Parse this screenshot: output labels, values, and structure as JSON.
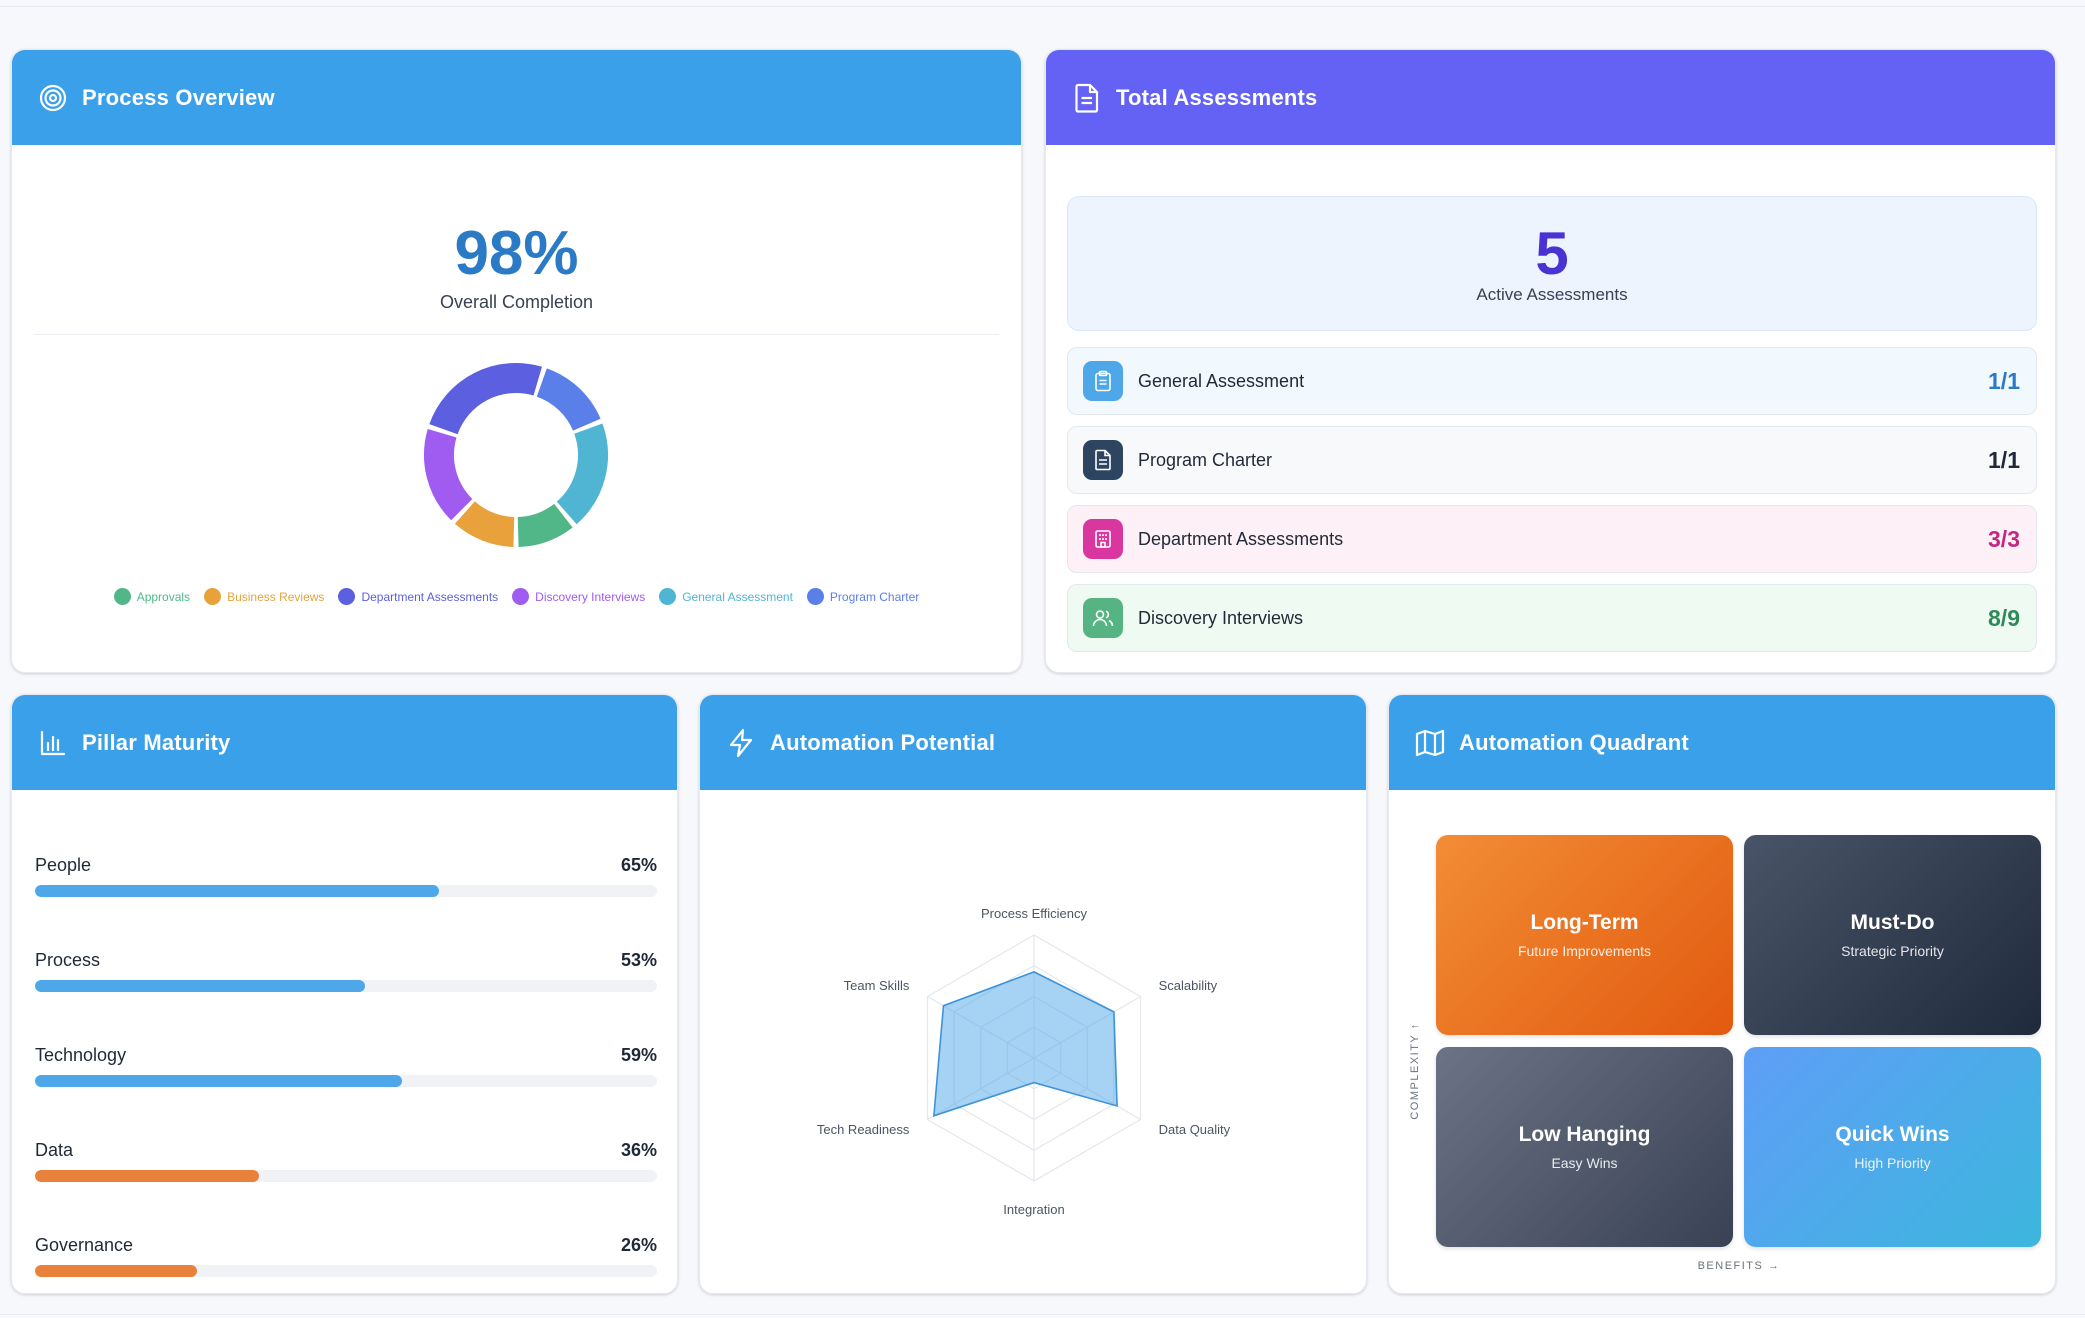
{
  "process_overview": {
    "title": "Process Overview",
    "icon": "target-icon",
    "completion": "98%",
    "completion_label": "Overall Completion",
    "legend": [
      {
        "label": "Approvals",
        "color": "#52b788"
      },
      {
        "label": "Business Reviews",
        "color": "#e9a23b"
      },
      {
        "label": "Department Assessments",
        "color": "#5b5fe0"
      },
      {
        "label": "Discovery Interviews",
        "color": "#a05cf0"
      },
      {
        "label": "General Assessment",
        "color": "#4fb5d3"
      },
      {
        "label": "Program Charter",
        "color": "#5b7fe8"
      }
    ]
  },
  "total_assessments": {
    "title": "Total Assessments",
    "icon": "document-icon",
    "active_count": "5",
    "active_label": "Active Assessments",
    "items": [
      {
        "label": "General Assessment",
        "count": "1/1",
        "icon": "clipboard-icon",
        "icon_bg": "#4ea7e8",
        "row_bg": "#f1f8fe",
        "count_color": "#2a7ac6"
      },
      {
        "label": "Program Charter",
        "count": "1/1",
        "icon": "document-icon",
        "icon_bg": "#2d4560",
        "row_bg": "#f8f9fb",
        "count_color": "#1f2937"
      },
      {
        "label": "Department Assessments",
        "count": "3/3",
        "icon": "building-icon",
        "icon_bg": "#d936a0",
        "row_bg": "#fdf0f6",
        "count_color": "#c2287f"
      },
      {
        "label": "Discovery Interviews",
        "count": "8/9",
        "icon": "users-icon",
        "icon_bg": "#55b482",
        "row_bg": "#effaf3",
        "count_color": "#2f8a5a"
      }
    ]
  },
  "pillar_maturity": {
    "title": "Pillar Maturity",
    "icon": "bar-chart-icon",
    "pillars": [
      {
        "name": "People",
        "value": "65%",
        "fraction": 0.65,
        "color": "#4ea7e8"
      },
      {
        "name": "Process",
        "value": "53%",
        "fraction": 0.53,
        "color": "#4ea7e8"
      },
      {
        "name": "Technology",
        "value": "59%",
        "fraction": 0.59,
        "color": "#4ea7e8"
      },
      {
        "name": "Data",
        "value": "36%",
        "fraction": 0.36,
        "color": "#e8823b"
      },
      {
        "name": "Governance",
        "value": "26%",
        "fraction": 0.26,
        "color": "#e8823b"
      }
    ]
  },
  "automation_potential": {
    "title": "Automation Potential",
    "icon": "lightning-icon"
  },
  "automation_quadrant": {
    "title": "Automation Quadrant",
    "icon": "map-icon",
    "y_axis": "COMPLEXITY ↑",
    "x_axis": "BENEFITS →",
    "quadrants": [
      {
        "title": "Long-Term",
        "subtitle": "Future Improvements"
      },
      {
        "title": "Must-Do",
        "subtitle": "Strategic Priority"
      },
      {
        "title": "Low Hanging",
        "subtitle": "Easy Wins"
      },
      {
        "title": "Quick Wins",
        "subtitle": "High Priority"
      }
    ]
  },
  "chart_data": [
    {
      "type": "pie",
      "categories": [
        "Program Charter",
        "General Assessment",
        "Approvals",
        "Business Reviews",
        "Discovery Interviews",
        "Department Assessments"
      ],
      "values": [
        14,
        20,
        11,
        12,
        18,
        25
      ],
      "colors": [
        "#5b7fe8",
        "#4fb5d3",
        "#52b788",
        "#e9a23b",
        "#a05cf0",
        "#5b5fe0"
      ],
      "donut": true
    },
    {
      "type": "radar",
      "axes": [
        "Process Efficiency",
        "Scalability",
        "Data Quality",
        "Integration",
        "Tech Readiness",
        "Team Skills"
      ],
      "values": [
        0.7,
        0.75,
        0.78,
        0.2,
        0.94,
        0.85
      ],
      "range": [
        0,
        1
      ],
      "color": "#4ea7e8"
    }
  ]
}
